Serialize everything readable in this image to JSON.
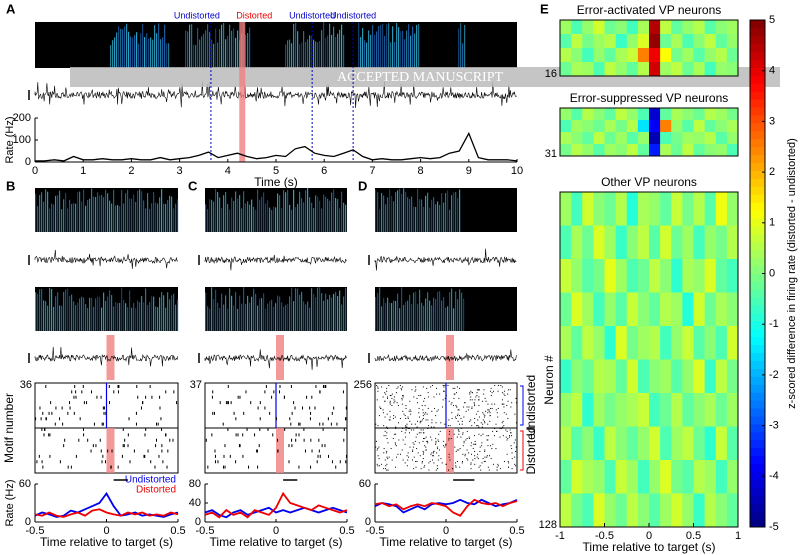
{
  "panel_labels": [
    "A",
    "B",
    "C",
    "D",
    "E"
  ],
  "watermark": "ACCEPTED MANUSCRIPT",
  "annotations": [
    {
      "text": "Undistorted",
      "x": 3.65,
      "color": "#0000cc"
    },
    {
      "text": "Distorted",
      "x": 4.3,
      "color": "#ee0000"
    },
    {
      "text": "Undistorted",
      "x": 5.75,
      "color": "#0000cc"
    },
    {
      "text": "Undistorted",
      "x": 6.6,
      "color": "#0000cc"
    }
  ],
  "chart_data": [
    {
      "type": "line",
      "panel": "A",
      "xlabel": "Time (s)",
      "ylabel": "Rate (Hz)",
      "color": "#000000",
      "xlim": [
        0,
        10
      ],
      "xticks": [
        0,
        1,
        2,
        3,
        4,
        5,
        6,
        7,
        8,
        9,
        10
      ],
      "ylim": [
        0,
        200
      ],
      "yticks": [
        0,
        100,
        200
      ],
      "x": [
        0,
        0.2,
        0.4,
        0.6,
        0.8,
        1.0,
        1.2,
        1.4,
        1.6,
        1.8,
        2.0,
        2.2,
        2.4,
        2.6,
        2.8,
        3.0,
        3.2,
        3.4,
        3.6,
        3.8,
        4.0,
        4.2,
        4.4,
        4.6,
        4.8,
        5.0,
        5.2,
        5.4,
        5.6,
        5.8,
        6.0,
        6.2,
        6.4,
        6.6,
        6.8,
        7.0,
        7.2,
        7.4,
        7.6,
        7.8,
        8.0,
        8.2,
        8.4,
        8.6,
        8.8,
        9.0,
        9.2,
        9.4,
        9.6,
        9.8,
        10.0
      ],
      "values": [
        5,
        5,
        10,
        5,
        25,
        10,
        10,
        15,
        10,
        10,
        15,
        10,
        10,
        20,
        10,
        15,
        20,
        30,
        45,
        20,
        30,
        40,
        25,
        15,
        20,
        30,
        25,
        60,
        70,
        40,
        30,
        25,
        40,
        55,
        25,
        10,
        15,
        10,
        10,
        15,
        20,
        15,
        20,
        40,
        50,
        130,
        20,
        10,
        10,
        10,
        5
      ]
    },
    {
      "type": "line",
      "panel": "B",
      "xlabel": "Time relative to target (s)",
      "ylabel": "Rate (Hz)",
      "raster_label": "Motif number",
      "raster_count": 36,
      "legend": "inside",
      "xlim": [
        -0.5,
        0.5
      ],
      "xticks": [
        -0.5,
        0,
        0.5
      ],
      "ylim": [
        0,
        60
      ],
      "yticks": [
        0,
        60
      ],
      "x": [
        -0.5,
        -0.45,
        -0.4,
        -0.35,
        -0.3,
        -0.25,
        -0.2,
        -0.15,
        -0.1,
        -0.05,
        0,
        0.05,
        0.1,
        0.15,
        0.2,
        0.25,
        0.3,
        0.35,
        0.4,
        0.45,
        0.5
      ],
      "series": [
        {
          "name": "Undistorted",
          "color": "#0000ee",
          "values": [
            10,
            15,
            12,
            8,
            10,
            18,
            15,
            20,
            25,
            30,
            45,
            25,
            10,
            12,
            15,
            10,
            12,
            10,
            8,
            12,
            15
          ]
        },
        {
          "name": "Distorted",
          "color": "#ee0000",
          "values": [
            12,
            10,
            15,
            10,
            8,
            12,
            15,
            10,
            18,
            20,
            15,
            12,
            10,
            15,
            12,
            15,
            10,
            12,
            10,
            15,
            12
          ]
        }
      ]
    },
    {
      "type": "line",
      "panel": "C",
      "xlabel": "Time relative to target (s)",
      "raster_count": 37,
      "xlim": [
        -0.5,
        0.5
      ],
      "xticks": [
        -0.5,
        0,
        0.5
      ],
      "ylim": [
        0,
        80
      ],
      "yticks": [
        0,
        40,
        80
      ],
      "x": [
        -0.5,
        -0.45,
        -0.4,
        -0.35,
        -0.3,
        -0.25,
        -0.2,
        -0.15,
        -0.1,
        -0.05,
        0,
        0.05,
        0.1,
        0.15,
        0.2,
        0.25,
        0.3,
        0.35,
        0.4,
        0.45,
        0.5
      ],
      "series": [
        {
          "color": "#0000ee",
          "values": [
            20,
            25,
            15,
            10,
            20,
            25,
            15,
            20,
            25,
            30,
            20,
            25,
            20,
            25,
            30,
            25,
            20,
            25,
            30,
            25,
            20
          ]
        },
        {
          "color": "#ee0000",
          "values": [
            15,
            20,
            10,
            25,
            15,
            20,
            10,
            25,
            20,
            15,
            30,
            60,
            40,
            35,
            30,
            25,
            35,
            30,
            25,
            20,
            25
          ]
        }
      ]
    },
    {
      "type": "line",
      "panel": "D",
      "xlabel": "Time relative to target (s)",
      "raster_count": 256,
      "legend": "brackets",
      "xlim": [
        -0.5,
        0.5
      ],
      "xticks": [
        -0.5,
        0,
        0.5
      ],
      "ylim": [
        0,
        60
      ],
      "yticks": [
        0,
        60
      ],
      "x": [
        -0.5,
        -0.45,
        -0.4,
        -0.35,
        -0.3,
        -0.25,
        -0.2,
        -0.15,
        -0.1,
        -0.05,
        0,
        0.05,
        0.1,
        0.15,
        0.2,
        0.25,
        0.3,
        0.35,
        0.4,
        0.45,
        0.5
      ],
      "series": [
        {
          "name": "Undistorted",
          "color": "#0000ee",
          "values": [
            25,
            30,
            28,
            25,
            15,
            20,
            25,
            20,
            28,
            30,
            28,
            30,
            35,
            30,
            28,
            35,
            30,
            25,
            28,
            30,
            35
          ]
        },
        {
          "name": "Distorted",
          "color": "#ee0000",
          "values": [
            28,
            30,
            25,
            28,
            20,
            25,
            28,
            25,
            30,
            28,
            25,
            15,
            10,
            25,
            35,
            30,
            28,
            30,
            25,
            30,
            33
          ]
        }
      ]
    },
    {
      "type": "heatmap",
      "panel": "E",
      "xlabel": "Time relative to target (s)",
      "ylabel": "Neuron #",
      "colorbar_label": "z-scored difference in firing rate (distorted - undistorted)",
      "xlim": [
        -1,
        1
      ],
      "xticks": [
        -1,
        -0.5,
        0,
        0.5,
        1
      ],
      "clim": [
        -5,
        5
      ],
      "cticks": [
        -5,
        -4,
        -3,
        -2,
        -1,
        0,
        1,
        2,
        3,
        4,
        5
      ],
      "maps": [
        {
          "title": "Error-activated VP neurons",
          "row_label": "16",
          "values": [
            [
              0.3,
              -0.5,
              0.2,
              0.8,
              -0.2,
              0.1,
              -0.6,
              0.4,
              4.5,
              0.6,
              -0.3,
              0.2,
              0.5,
              -0.4,
              0.1,
              0.3
            ],
            [
              -0.4,
              0.6,
              -0.1,
              0.3,
              0.5,
              -0.7,
              0.2,
              0.9,
              4.8,
              -0.2,
              0.4,
              -0.5,
              0.1,
              0.6,
              -0.3,
              0.2
            ],
            [
              0.5,
              0.1,
              -0.6,
              0.2,
              -0.3,
              0.4,
              0.7,
              2.5,
              3.9,
              1.2,
              -0.1,
              0.3,
              -0.4,
              0.2,
              0.5,
              -0.2
            ],
            [
              -0.2,
              0.4,
              0.3,
              -0.5,
              0.6,
              0.2,
              -0.3,
              0.5,
              4.2,
              0.3,
              0.6,
              -0.2,
              0.4,
              -0.6,
              0.2,
              0.1
            ]
          ]
        },
        {
          "title": "Error-suppressed VP neurons",
          "row_label": "31",
          "values": [
            [
              0.2,
              -0.4,
              0.5,
              0.1,
              -0.3,
              0.6,
              0.2,
              -0.5,
              -4.2,
              -0.3,
              0.4,
              0.1,
              -0.2,
              0.5,
              0.3,
              -0.1
            ],
            [
              -0.5,
              0.3,
              0.1,
              -0.2,
              0.4,
              -0.1,
              0.5,
              -1.5,
              -3.8,
              2.5,
              0.2,
              -0.4,
              0.6,
              -0.3,
              0.1,
              0.4
            ],
            [
              0.4,
              0.1,
              -0.3,
              0.6,
              -0.2,
              0.3,
              -0.4,
              0.2,
              -4.5,
              -0.5,
              -0.1,
              0.3,
              0.2,
              0.5,
              -0.4,
              0.2
            ],
            [
              -0.1,
              0.5,
              0.2,
              -0.4,
              0.3,
              0.1,
              0.6,
              -0.3,
              -3.5,
              0.4,
              -0.2,
              0.6,
              -0.3,
              0.1,
              0.2,
              -0.5
            ]
          ]
        },
        {
          "title": "Other VP neurons",
          "row_label": "128",
          "values": [
            [
              0.3,
              -0.6,
              0.8,
              0.1,
              -0.2,
              0.5,
              -0.9,
              0.4,
              0.2,
              -0.3,
              0.7,
              -0.1,
              0.5,
              -0.4,
              1.1,
              0.2
            ],
            [
              -0.5,
              0.4,
              -0.2,
              0.9,
              0.3,
              -0.7,
              0.1,
              0.6,
              -0.4,
              0.8,
              -0.2,
              0.3,
              -0.6,
              0.2,
              -0.1,
              0.5
            ],
            [
              0.7,
              0.2,
              -0.4,
              -0.1,
              1.0,
              0.3,
              -0.5,
              -0.2,
              0.6,
              0.1,
              -0.8,
              0.4,
              0.2,
              0.9,
              -0.3,
              -0.6
            ],
            [
              -0.2,
              0.9,
              0.3,
              -0.6,
              0.2,
              -0.4,
              0.7,
              0.1,
              -0.3,
              0.5,
              0.3,
              -0.9,
              0.8,
              -0.2,
              0.4,
              0.1
            ],
            [
              0.4,
              -0.3,
              0.6,
              0.2,
              -0.8,
              0.9,
              -0.1,
              0.3,
              0.5,
              -0.6,
              0.2,
              0.7,
              -0.4,
              0.1,
              -0.5,
              0.8
            ],
            [
              -0.7,
              0.1,
              -0.2,
              0.5,
              0.4,
              -0.3,
              0.8,
              -0.5,
              0.1,
              0.3,
              -0.4,
              0.2,
              0.9,
              -0.7,
              0.6,
              -0.1
            ],
            [
              0.2,
              0.6,
              -0.8,
              0.3,
              -0.1,
              0.2,
              0.4,
              0.7,
              -0.6,
              -0.2,
              0.5,
              -0.3,
              0.1,
              0.4,
              -0.2,
              0.3
            ],
            [
              0.5,
              -0.4,
              0.1,
              -0.7,
              0.6,
              0.1,
              -0.3,
              0.2,
              0.8,
              -0.5,
              0.3,
              0.6,
              -0.2,
              -0.8,
              0.7,
              -0.4
            ],
            [
              -0.3,
              0.8,
              0.4,
              0.2,
              -0.5,
              0.7,
              0.3,
              -0.6,
              0.2,
              0.9,
              -0.1,
              -0.4,
              0.5,
              0.3,
              -0.6,
              0.2
            ],
            [
              0.6,
              -0.1,
              -0.5,
              0.9,
              0.2,
              -0.2,
              0.6,
              0.1,
              -0.4,
              0.3,
              0.8,
              0.2,
              -0.7,
              0.5,
              0.1,
              -0.3
            ]
          ]
        }
      ]
    }
  ]
}
